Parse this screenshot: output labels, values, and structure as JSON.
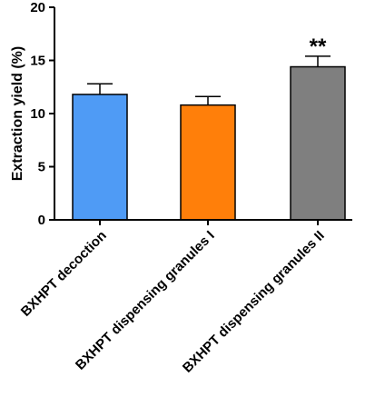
{
  "chart_data": {
    "type": "bar",
    "title": "",
    "xlabel": "",
    "ylabel": "Extraction yield (%)",
    "ylim": [
      0,
      20
    ],
    "yticks": [
      0,
      5,
      10,
      15,
      20
    ],
    "grid": false,
    "categories": [
      "BXHPT decoction",
      "BXHPT dispensing  granules I",
      "BXHPT dispensing granules II"
    ],
    "values": [
      11.8,
      10.8,
      14.4
    ],
    "errors": [
      1.0,
      0.8,
      1.0
    ],
    "colors": [
      "#4f9bf5",
      "#ff7f0a",
      "#7f7f7f"
    ],
    "annotations": [
      "",
      "",
      "**"
    ]
  }
}
